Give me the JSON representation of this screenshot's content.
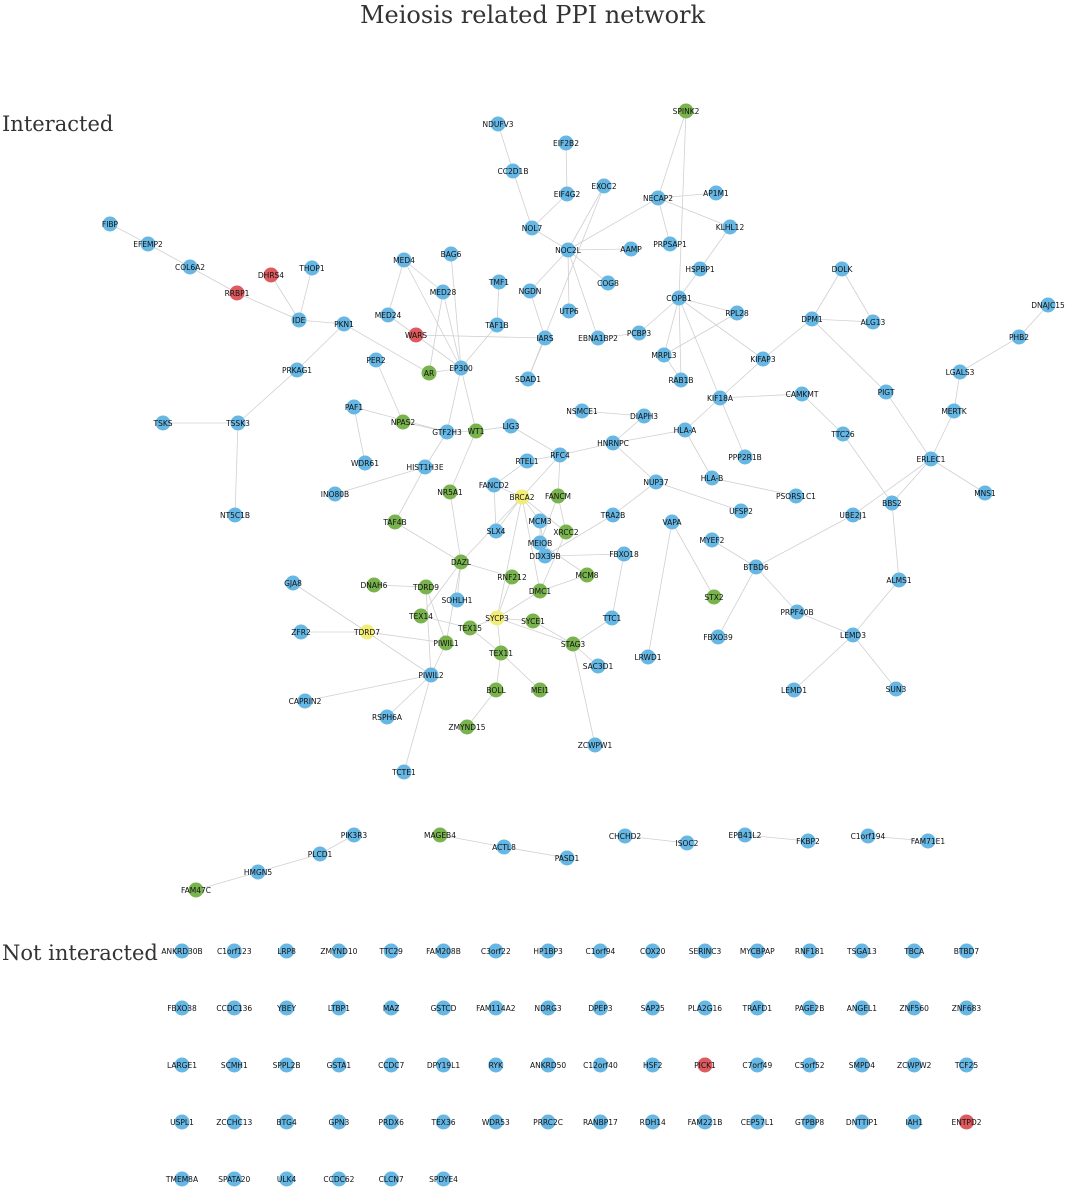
{
  "title": "Meiosis related PPI network",
  "sections": {
    "interacted": "Interacted",
    "not_interacted": "Not interacted"
  },
  "colors": {
    "blue": "#67b7e4",
    "green": "#79b34e",
    "yellow": "#f2ec78",
    "red": "#dd5a5f"
  },
  "nodes": [
    {
      "id": "SPINK2",
      "c": "green"
    },
    {
      "id": "NDUFV3",
      "c": "blue"
    },
    {
      "id": "EIF2B2",
      "c": "blue"
    },
    {
      "id": "CC2D1B",
      "c": "blue"
    },
    {
      "id": "EXOC2",
      "c": "blue"
    },
    {
      "id": "EIF4G2",
      "c": "blue"
    },
    {
      "id": "NECAP2",
      "c": "blue"
    },
    {
      "id": "AP1M1",
      "c": "blue"
    },
    {
      "id": "KLHL12",
      "c": "blue"
    },
    {
      "id": "FIBP",
      "c": "blue"
    },
    {
      "id": "EFEMP2",
      "c": "blue"
    },
    {
      "id": "NOL7",
      "c": "blue"
    },
    {
      "id": "NOC2L",
      "c": "blue"
    },
    {
      "id": "AAMP",
      "c": "blue"
    },
    {
      "id": "PRPSAP1",
      "c": "blue"
    },
    {
      "id": "MED4",
      "c": "blue"
    },
    {
      "id": "BAG6",
      "c": "blue"
    },
    {
      "id": "COL6A2",
      "c": "blue"
    },
    {
      "id": "DHRS4",
      "c": "red"
    },
    {
      "id": "THOP1",
      "c": "blue"
    },
    {
      "id": "RRBP1",
      "c": "red"
    },
    {
      "id": "TMF1",
      "c": "blue"
    },
    {
      "id": "NGDN",
      "c": "blue"
    },
    {
      "id": "COG8",
      "c": "blue"
    },
    {
      "id": "HSPBP1",
      "c": "blue"
    },
    {
      "id": "DOLK",
      "c": "blue"
    },
    {
      "id": "DNAJC15",
      "c": "blue"
    },
    {
      "id": "MED28",
      "c": "blue"
    },
    {
      "id": "UTP6",
      "c": "blue"
    },
    {
      "id": "COPB1",
      "c": "blue"
    },
    {
      "id": "RPL28",
      "c": "blue"
    },
    {
      "id": "PHB2",
      "c": "blue"
    },
    {
      "id": "MED24",
      "c": "blue"
    },
    {
      "id": "IDE",
      "c": "blue"
    },
    {
      "id": "PKN1",
      "c": "blue"
    },
    {
      "id": "TAF1B",
      "c": "blue"
    },
    {
      "id": "WARS",
      "c": "red"
    },
    {
      "id": "IARS",
      "c": "blue"
    },
    {
      "id": "EBNA1BP2",
      "c": "blue"
    },
    {
      "id": "PCBP3",
      "c": "blue"
    },
    {
      "id": "DPM1",
      "c": "blue"
    },
    {
      "id": "ALG13",
      "c": "blue"
    },
    {
      "id": "MRPL3",
      "c": "blue"
    },
    {
      "id": "PER2",
      "c": "blue"
    },
    {
      "id": "KIFAP3",
      "c": "blue"
    },
    {
      "id": "PRKAG1",
      "c": "blue"
    },
    {
      "id": "AR",
      "c": "green"
    },
    {
      "id": "EP300",
      "c": "blue"
    },
    {
      "id": "SDAD1",
      "c": "blue"
    },
    {
      "id": "RAB1B",
      "c": "blue"
    },
    {
      "id": "LGALS3",
      "c": "blue"
    },
    {
      "id": "CAMKMT",
      "c": "blue"
    },
    {
      "id": "PIGT",
      "c": "blue"
    },
    {
      "id": "KIF18A",
      "c": "blue"
    },
    {
      "id": "PAF1",
      "c": "blue"
    },
    {
      "id": "MERTK",
      "c": "blue"
    },
    {
      "id": "NSMCE1",
      "c": "blue"
    },
    {
      "id": "DIAPH3",
      "c": "blue"
    },
    {
      "id": "TSKS",
      "c": "blue"
    },
    {
      "id": "TSSK3",
      "c": "blue"
    },
    {
      "id": "NPAS2",
      "c": "green"
    },
    {
      "id": "WT1",
      "c": "green"
    },
    {
      "id": "LIG3",
      "c": "blue"
    },
    {
      "id": "GTF2H3",
      "c": "blue"
    },
    {
      "id": "HLA-A",
      "c": "blue"
    },
    {
      "id": "TTC26",
      "c": "blue"
    },
    {
      "id": "HNRNPC",
      "c": "blue"
    },
    {
      "id": "WDR61",
      "c": "blue"
    },
    {
      "id": "HIST1H3E",
      "c": "blue"
    },
    {
      "id": "RFC4",
      "c": "blue"
    },
    {
      "id": "RTEL1",
      "c": "blue"
    },
    {
      "id": "PPP2R1B",
      "c": "blue"
    },
    {
      "id": "ERLEC1",
      "c": "blue"
    },
    {
      "id": "FANCD2",
      "c": "blue"
    },
    {
      "id": "NR5A1",
      "c": "green"
    },
    {
      "id": "HLA-B",
      "c": "blue"
    },
    {
      "id": "NUP37",
      "c": "blue"
    },
    {
      "id": "INO80B",
      "c": "blue"
    },
    {
      "id": "MNS1",
      "c": "blue"
    },
    {
      "id": "BRCA2",
      "c": "yellow"
    },
    {
      "id": "FANCM",
      "c": "green"
    },
    {
      "id": "PSORS1C1",
      "c": "blue"
    },
    {
      "id": "BBS2",
      "c": "blue"
    },
    {
      "id": "NT5C1B",
      "c": "blue"
    },
    {
      "id": "TAF4B",
      "c": "green"
    },
    {
      "id": "UFSP2",
      "c": "blue"
    },
    {
      "id": "TRA2B",
      "c": "blue"
    },
    {
      "id": "MCM3",
      "c": "blue"
    },
    {
      "id": "UBE2J1",
      "c": "blue"
    },
    {
      "id": "SLX4",
      "c": "blue"
    },
    {
      "id": "VAPA",
      "c": "blue"
    },
    {
      "id": "XRCC2",
      "c": "green"
    },
    {
      "id": "MEIOB",
      "c": "blue"
    },
    {
      "id": "MYEF2",
      "c": "blue"
    },
    {
      "id": "DDX39B",
      "c": "blue"
    },
    {
      "id": "FBXO18",
      "c": "blue"
    },
    {
      "id": "BTBD6",
      "c": "blue"
    },
    {
      "id": "DAZL",
      "c": "green"
    },
    {
      "id": "MCM8",
      "c": "green"
    },
    {
      "id": "RNF212",
      "c": "green"
    },
    {
      "id": "GJA8",
      "c": "blue"
    },
    {
      "id": "DNAH6",
      "c": "green"
    },
    {
      "id": "TDRD9",
      "c": "green"
    },
    {
      "id": "ALMS1",
      "c": "blue"
    },
    {
      "id": "DMC1",
      "c": "green"
    },
    {
      "id": "SOHLH1",
      "c": "blue"
    },
    {
      "id": "STX2",
      "c": "green"
    },
    {
      "id": "PRPF40B",
      "c": "blue"
    },
    {
      "id": "TEX14",
      "c": "green"
    },
    {
      "id": "SYCP3",
      "c": "yellow"
    },
    {
      "id": "SYCE1",
      "c": "green"
    },
    {
      "id": "TTC1",
      "c": "blue"
    },
    {
      "id": "FBXO39",
      "c": "blue"
    },
    {
      "id": "ZFR2",
      "c": "blue"
    },
    {
      "id": "TDRD7",
      "c": "yellow"
    },
    {
      "id": "TEX15",
      "c": "green"
    },
    {
      "id": "LEMD3",
      "c": "blue"
    },
    {
      "id": "PIWIL1",
      "c": "green"
    },
    {
      "id": "STAG3",
      "c": "green"
    },
    {
      "id": "TEX11",
      "c": "green"
    },
    {
      "id": "LRWD1",
      "c": "blue"
    },
    {
      "id": "SAC3D1",
      "c": "blue"
    },
    {
      "id": "PIWIL2",
      "c": "blue"
    },
    {
      "id": "SUN3",
      "c": "blue"
    },
    {
      "id": "LEMD1",
      "c": "blue"
    },
    {
      "id": "CAPRIN2",
      "c": "blue"
    },
    {
      "id": "BOLL",
      "c": "green"
    },
    {
      "id": "MEI1",
      "c": "green"
    },
    {
      "id": "RSPH6A",
      "c": "blue"
    },
    {
      "id": "ZMYND15",
      "c": "green"
    },
    {
      "id": "ZCWPW1",
      "c": "blue"
    },
    {
      "id": "TCTE1",
      "c": "blue"
    },
    {
      "id": "PIK3R3",
      "c": "blue"
    },
    {
      "id": "MAGEB4",
      "c": "green"
    },
    {
      "id": "CHCHD2",
      "c": "blue"
    },
    {
      "id": "EPB41L2",
      "c": "blue"
    },
    {
      "id": "C1orf194",
      "c": "blue"
    },
    {
      "id": "ACTL8",
      "c": "blue"
    },
    {
      "id": "ISOC2",
      "c": "blue"
    },
    {
      "id": "FKBP2",
      "c": "blue"
    },
    {
      "id": "FAM71E1",
      "c": "blue"
    },
    {
      "id": "PLCD1",
      "c": "blue"
    },
    {
      "id": "PASD1",
      "c": "blue"
    },
    {
      "id": "HMGN5",
      "c": "blue"
    },
    {
      "id": "FAM47C",
      "c": "green"
    }
  ],
  "edges": [
    [
      "FIBP",
      "EFEMP2"
    ],
    [
      "EFEMP2",
      "COL6A2"
    ],
    [
      "COL6A2",
      "RRBP1"
    ],
    [
      "RRBP1",
      "IDE"
    ],
    [
      "DHRS4",
      "IDE"
    ],
    [
      "THOP1",
      "IDE"
    ],
    [
      "IDE",
      "PKN1"
    ],
    [
      "PKN1",
      "PRKAG1"
    ],
    [
      "PKN1",
      "AR"
    ],
    [
      "PRKAG1",
      "TSSK3"
    ],
    [
      "TSKS",
      "TSSK3"
    ],
    [
      "TSSK3",
      "NT5C1B"
    ],
    [
      "MED4",
      "MED28"
    ],
    [
      "MED4",
      "MED24"
    ],
    [
      "MED4",
      "EP300"
    ],
    [
      "MED28",
      "EP300"
    ],
    [
      "MED24",
      "EP300"
    ],
    [
      "BAG6",
      "EP300"
    ],
    [
      "MED28",
      "AR"
    ],
    [
      "NDUFV3",
      "CC2D1B"
    ],
    [
      "CC2D1B",
      "NOL7"
    ],
    [
      "EIF2B2",
      "EIF4G2"
    ],
    [
      "EIF4G2",
      "NOL7"
    ],
    [
      "NOL7",
      "NOC2L"
    ],
    [
      "NOC2L",
      "NGDN"
    ],
    [
      "NOC2L",
      "UTP6"
    ],
    [
      "NOC2L",
      "AAMP"
    ],
    [
      "NOC2L",
      "COG8"
    ],
    [
      "NOC2L",
      "EBNA1BP2"
    ],
    [
      "NOC2L",
      "NECAP2"
    ],
    [
      "EXOC2",
      "NOC2L"
    ],
    [
      "EXOC2",
      "SDAD1"
    ],
    [
      "NECAP2",
      "AP1M1"
    ],
    [
      "NECAP2",
      "KLHL12"
    ],
    [
      "NECAP2",
      "PRPSAP1"
    ],
    [
      "NECAP2",
      "SPINK2"
    ],
    [
      "SPINK2",
      "COPB1"
    ],
    [
      "KLHL12",
      "HSPBP1"
    ],
    [
      "HSPBP1",
      "COPB1"
    ],
    [
      "COPB1",
      "RPL28"
    ],
    [
      "COPB1",
      "MRPL3"
    ],
    [
      "COPB1",
      "PCBP3"
    ],
    [
      "COPB1",
      "KIF18A"
    ],
    [
      "COPB1",
      "RAB1B"
    ],
    [
      "COPB1",
      "KIFAP3"
    ],
    [
      "DOLK",
      "DPM1"
    ],
    [
      "DOLK",
      "ALG13"
    ],
    [
      "DPM1",
      "ALG13"
    ],
    [
      "DPM1",
      "PIGT"
    ],
    [
      "DPM1",
      "KIFAP3"
    ],
    [
      "PIGT",
      "ERLEC1"
    ],
    [
      "DNAJC15",
      "PHB2"
    ],
    [
      "PHB2",
      "LGALS3"
    ],
    [
      "LGALS3",
      "MERTK"
    ],
    [
      "MERTK",
      "ERLEC1"
    ],
    [
      "ERLEC1",
      "MNS1"
    ],
    [
      "ERLEC1",
      "BBS2"
    ],
    [
      "ERLEC1",
      "UBE2J1"
    ],
    [
      "TTC26",
      "BBS2"
    ],
    [
      "BBS2",
      "ALMS1"
    ],
    [
      "CAMKMT",
      "TTC26"
    ],
    [
      "CAMKMT",
      "KIF18A"
    ],
    [
      "KIF18A",
      "KIFAP3"
    ],
    [
      "KIF18A",
      "PPP2R1B"
    ],
    [
      "KIF18A",
      "HLA-A"
    ],
    [
      "HLA-A",
      "HLA-B"
    ],
    [
      "HLA-A",
      "HNRNPC"
    ],
    [
      "HLA-B",
      "PSORS1C1"
    ],
    [
      "HNRNPC",
      "NUP37"
    ],
    [
      "NUP37",
      "UFSP2"
    ],
    [
      "NUP37",
      "TRA2B"
    ],
    [
      "HNRNPC",
      "DIAPH3"
    ],
    [
      "HNRNPC",
      "RFC4"
    ],
    [
      "DIAPH3",
      "NSMCE1"
    ],
    [
      "RFC4",
      "RTEL1"
    ],
    [
      "RFC4",
      "FANCM"
    ],
    [
      "RFC4",
      "BRCA2"
    ],
    [
      "RFC4",
      "LIG3"
    ],
    [
      "LIG3",
      "WT1"
    ],
    [
      "WT1",
      "GTF2H3"
    ],
    [
      "GTF2H3",
      "HIST1H3E"
    ],
    [
      "GTF2H3",
      "NPAS2"
    ],
    [
      "NPAS2",
      "PER2"
    ],
    [
      "PAF1",
      "WDR61"
    ],
    [
      "PAF1",
      "GTF2H3"
    ],
    [
      "HIST1H3E",
      "INO80B"
    ],
    [
      "HIST1H3E",
      "TAF4B"
    ],
    [
      "EP300",
      "AR"
    ],
    [
      "EP300",
      "WT1"
    ],
    [
      "EP300",
      "TAF1B"
    ],
    [
      "TAF1B",
      "TMF1"
    ],
    [
      "EP300",
      "GTF2H3"
    ],
    [
      "IARS",
      "WARS"
    ],
    [
      "IARS",
      "SDAD1"
    ],
    [
      "IARS",
      "NGDN"
    ],
    [
      "EBNA1BP2",
      "PCBP3"
    ],
    [
      "MRPL3",
      "RPL28"
    ],
    [
      "MRPL3",
      "RAB1B"
    ],
    [
      "BRCA2",
      "FANCD2"
    ],
    [
      "BRCA2",
      "SLX4"
    ],
    [
      "BRCA2",
      "MCM3"
    ],
    [
      "BRCA2",
      "XRCC2"
    ],
    [
      "BRCA2",
      "DAZL"
    ],
    [
      "BRCA2",
      "DMC1"
    ],
    [
      "BRCA2",
      "SYCP3"
    ],
    [
      "FANCM",
      "MEIOB"
    ],
    [
      "FANCM",
      "XRCC2"
    ],
    [
      "FANCD2",
      "SLX4"
    ],
    [
      "FANCD2",
      "RTEL1"
    ],
    [
      "MCM3",
      "MEIOB"
    ],
    [
      "MCM3",
      "DDX39B"
    ],
    [
      "MCM8",
      "MEIOB"
    ],
    [
      "MCM8",
      "DMC1"
    ],
    [
      "XRCC2",
      "DMC1"
    ],
    [
      "DDX39B",
      "TRA2B"
    ],
    [
      "DDX39B",
      "FBXO18"
    ],
    [
      "FBXO18",
      "TTC1"
    ],
    [
      "NR5A1",
      "WT1"
    ],
    [
      "NR5A1",
      "DAZL"
    ],
    [
      "TAF4B",
      "DAZL"
    ],
    [
      "DAZL",
      "SOHLH1"
    ],
    [
      "DAZL",
      "TEX14"
    ],
    [
      "DAZL",
      "RNF212"
    ],
    [
      "DAZL",
      "PIWIL1"
    ],
    [
      "DNAH6",
      "TDRD9"
    ],
    [
      "TDRD9",
      "PIWIL1"
    ],
    [
      "TDRD9",
      "PIWIL2"
    ],
    [
      "TDRD7",
      "PIWIL1"
    ],
    [
      "TDRD7",
      "PIWIL2"
    ],
    [
      "TDRD7",
      "GJA8"
    ],
    [
      "ZFR2",
      "TDRD7"
    ],
    [
      "SYCP3",
      "SYCE1"
    ],
    [
      "SYCP3",
      "STAG3"
    ],
    [
      "SYCP3",
      "TEX11"
    ],
    [
      "SYCP3",
      "TEX15"
    ],
    [
      "SYCP3",
      "RNF212"
    ],
    [
      "SYCP3",
      "DMC1"
    ],
    [
      "SYCE1",
      "STAG3"
    ],
    [
      "STAG3",
      "SAC3D1"
    ],
    [
      "STAG3",
      "TTC1"
    ],
    [
      "TEX11",
      "TEX15"
    ],
    [
      "TEX11",
      "BOLL"
    ],
    [
      "TEX11",
      "MEI1"
    ],
    [
      "TEX14",
      "TEX15"
    ],
    [
      "PIWIL1",
      "PIWIL2"
    ],
    [
      "PIWIL2",
      "RSPH6A"
    ],
    [
      "PIWIL2",
      "TCTE1"
    ],
    [
      "PIWIL2",
      "CAPRIN2"
    ],
    [
      "BOLL",
      "ZMYND15"
    ],
    [
      "STAG3",
      "ZCWPW1"
    ],
    [
      "VAPA",
      "LRWD1"
    ],
    [
      "VAPA",
      "STX2"
    ],
    [
      "MYEF2",
      "BTBD6"
    ],
    [
      "BTBD6",
      "UBE2J1"
    ],
    [
      "BTBD6",
      "PRPF40B"
    ],
    [
      "BTBD6",
      "FBXO39"
    ],
    [
      "PRPF40B",
      "LEMD3"
    ],
    [
      "LEMD3",
      "ALMS1"
    ],
    [
      "LEMD3",
      "SUN3"
    ],
    [
      "LEMD3",
      "LEMD1"
    ],
    [
      "HMGN5",
      "PLCD1"
    ],
    [
      "HMGN5",
      "FAM47C"
    ],
    [
      "PLCD1",
      "PIK3R3"
    ],
    [
      "MAGEB4",
      "ACTL8"
    ],
    [
      "ACTL8",
      "PASD1"
    ],
    [
      "CHCHD2",
      "ISOC2"
    ],
    [
      "EPB41L2",
      "FKBP2"
    ],
    [
      "C1orf194",
      "FAM71E1"
    ]
  ],
  "not_interacted": [
    {
      "id": "ANKRD30B",
      "c": "blue"
    },
    {
      "id": "C1orf123",
      "c": "blue"
    },
    {
      "id": "LRP8",
      "c": "blue"
    },
    {
      "id": "ZMYND10",
      "c": "blue"
    },
    {
      "id": "TTC29",
      "c": "blue"
    },
    {
      "id": "FAM208B",
      "c": "blue"
    },
    {
      "id": "C3orf22",
      "c": "blue"
    },
    {
      "id": "HP1BP3",
      "c": "blue"
    },
    {
      "id": "C1orf94",
      "c": "blue"
    },
    {
      "id": "COX20",
      "c": "blue"
    },
    {
      "id": "SERINC3",
      "c": "blue"
    },
    {
      "id": "MYCBPAP",
      "c": "blue"
    },
    {
      "id": "RNF181",
      "c": "blue"
    },
    {
      "id": "TSGA13",
      "c": "blue"
    },
    {
      "id": "TBCA",
      "c": "blue"
    },
    {
      "id": "BTBD7",
      "c": "blue"
    },
    {
      "id": "FBXO38",
      "c": "blue"
    },
    {
      "id": "CCDC136",
      "c": "blue"
    },
    {
      "id": "YBEY",
      "c": "blue"
    },
    {
      "id": "LTBP1",
      "c": "blue"
    },
    {
      "id": "MAZ",
      "c": "blue"
    },
    {
      "id": "GSTCD",
      "c": "blue"
    },
    {
      "id": "FAM114A2",
      "c": "blue"
    },
    {
      "id": "NDRG3",
      "c": "blue"
    },
    {
      "id": "DPEP3",
      "c": "blue"
    },
    {
      "id": "SAP25",
      "c": "blue"
    },
    {
      "id": "PLA2G16",
      "c": "blue"
    },
    {
      "id": "TRAFD1",
      "c": "blue"
    },
    {
      "id": "PAGE2B",
      "c": "blue"
    },
    {
      "id": "ANGEL1",
      "c": "blue"
    },
    {
      "id": "ZNF560",
      "c": "blue"
    },
    {
      "id": "ZNF683",
      "c": "blue"
    },
    {
      "id": "LARGE1",
      "c": "blue"
    },
    {
      "id": "SCMH1",
      "c": "blue"
    },
    {
      "id": "SPPL2B",
      "c": "blue"
    },
    {
      "id": "GSTA1",
      "c": "blue"
    },
    {
      "id": "CCDC7",
      "c": "blue"
    },
    {
      "id": "DPY19L1",
      "c": "blue"
    },
    {
      "id": "RYK",
      "c": "blue"
    },
    {
      "id": "ANKRD50",
      "c": "blue"
    },
    {
      "id": "C12orf40",
      "c": "blue"
    },
    {
      "id": "HSF2",
      "c": "blue"
    },
    {
      "id": "PICK1",
      "c": "red"
    },
    {
      "id": "C7orf49",
      "c": "blue"
    },
    {
      "id": "C5orf52",
      "c": "blue"
    },
    {
      "id": "SMPD4",
      "c": "blue"
    },
    {
      "id": "ZCWPW2",
      "c": "blue"
    },
    {
      "id": "TCF25",
      "c": "blue"
    },
    {
      "id": "USPL1",
      "c": "blue"
    },
    {
      "id": "ZCCHC13",
      "c": "blue"
    },
    {
      "id": "BTG4",
      "c": "blue"
    },
    {
      "id": "GPN3",
      "c": "blue"
    },
    {
      "id": "PRDX6",
      "c": "blue"
    },
    {
      "id": "TEX36",
      "c": "blue"
    },
    {
      "id": "WDR53",
      "c": "blue"
    },
    {
      "id": "PRRC2C",
      "c": "blue"
    },
    {
      "id": "RANBP17",
      "c": "blue"
    },
    {
      "id": "RDH14",
      "c": "blue"
    },
    {
      "id": "FAM221B",
      "c": "blue"
    },
    {
      "id": "CEP57L1",
      "c": "blue"
    },
    {
      "id": "GTPBP8",
      "c": "blue"
    },
    {
      "id": "DNTTIP1",
      "c": "blue"
    },
    {
      "id": "IAH1",
      "c": "blue"
    },
    {
      "id": "ENTPD2",
      "c": "red"
    },
    {
      "id": "TMEM8A",
      "c": "blue"
    },
    {
      "id": "SPATA20",
      "c": "blue"
    },
    {
      "id": "ULK4",
      "c": "blue"
    },
    {
      "id": "CCDC62",
      "c": "blue"
    },
    {
      "id": "CLCN7",
      "c": "blue"
    },
    {
      "id": "SPDYE4",
      "c": "blue"
    }
  ]
}
